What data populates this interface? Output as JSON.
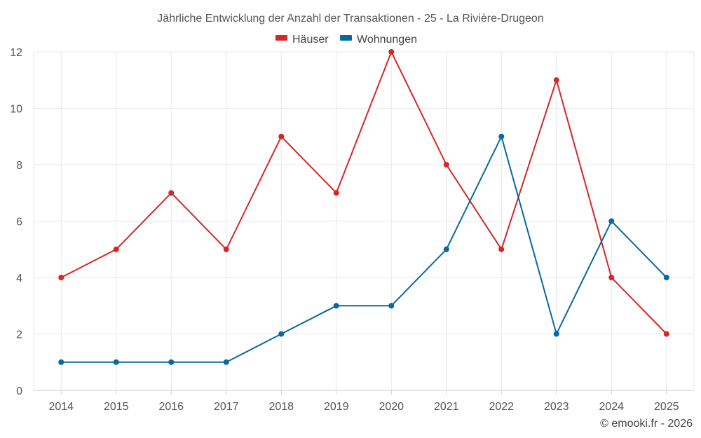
{
  "chart_data": {
    "type": "line",
    "title": "Jährliche Entwicklung der Anzahl der Transaktionen - 25 - La Rivière-Drugeon",
    "xlabel": "",
    "ylabel": "",
    "categories": [
      "2014",
      "2015",
      "2016",
      "2017",
      "2018",
      "2019",
      "2020",
      "2021",
      "2022",
      "2023",
      "2024",
      "2025"
    ],
    "ylim": [
      0,
      12
    ],
    "yticks": [
      "0",
      "2",
      "4",
      "6",
      "8",
      "10",
      "12"
    ],
    "grid": true,
    "legend_position": "top-center",
    "series": [
      {
        "name": "Häuser",
        "color": "#d62728",
        "values": [
          4,
          5,
          7,
          5,
          9,
          7,
          12,
          8,
          5,
          11,
          4,
          2
        ]
      },
      {
        "name": "Wohnungen",
        "color": "#0868a0",
        "values": [
          1,
          1,
          1,
          1,
          2,
          3,
          3,
          5,
          9,
          2,
          6,
          4
        ]
      }
    ]
  },
  "credit": "© emooki.fr - 2026"
}
